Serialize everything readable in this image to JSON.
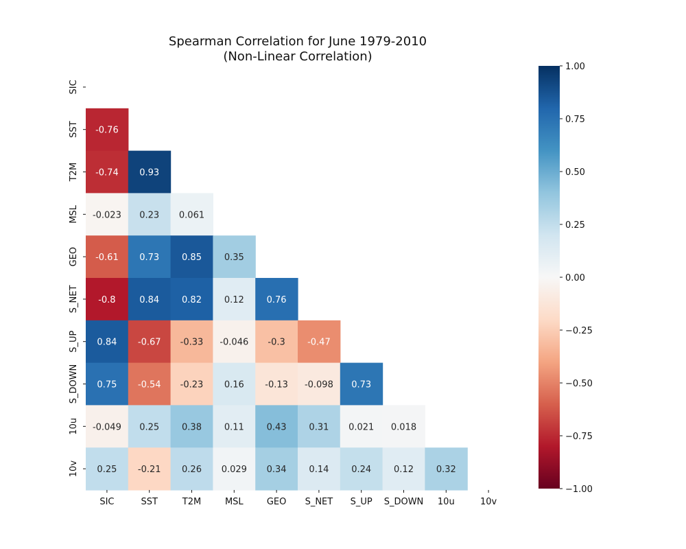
{
  "chart_data": {
    "type": "heatmap",
    "title": "Spearman Correlation for June 1979-2010",
    "subtitle": "(Non-Linear Correlation)",
    "variables": [
      "SIC",
      "SST",
      "T2M",
      "MSL",
      "GEO",
      "S_NET",
      "S_UP",
      "S_DOWN",
      "10u",
      "10v"
    ],
    "mask": "upper-triangle-including-diagonal",
    "matrix": [
      [
        null,
        null,
        null,
        null,
        null,
        null,
        null,
        null,
        null,
        null
      ],
      [
        -0.76,
        null,
        null,
        null,
        null,
        null,
        null,
        null,
        null,
        null
      ],
      [
        -0.74,
        0.93,
        null,
        null,
        null,
        null,
        null,
        null,
        null,
        null
      ],
      [
        -0.023,
        0.23,
        0.061,
        null,
        null,
        null,
        null,
        null,
        null,
        null
      ],
      [
        -0.61,
        0.73,
        0.85,
        0.35,
        null,
        null,
        null,
        null,
        null,
        null
      ],
      [
        -0.8,
        0.84,
        0.82,
        0.12,
        0.76,
        null,
        null,
        null,
        null,
        null
      ],
      [
        0.84,
        -0.67,
        -0.33,
        -0.046,
        -0.3,
        -0.47,
        null,
        null,
        null,
        null
      ],
      [
        0.75,
        -0.54,
        -0.23,
        0.16,
        -0.13,
        -0.098,
        0.73,
        null,
        null,
        null
      ],
      [
        -0.049,
        0.25,
        0.38,
        0.11,
        0.43,
        0.31,
        0.021,
        0.018,
        null,
        null
      ],
      [
        0.25,
        -0.21,
        0.26,
        0.029,
        0.34,
        0.14,
        0.24,
        0.12,
        0.32,
        null
      ]
    ],
    "labels": [
      [
        null,
        null,
        null,
        null,
        null,
        null,
        null,
        null,
        null,
        null
      ],
      [
        "-0.76",
        null,
        null,
        null,
        null,
        null,
        null,
        null,
        null,
        null
      ],
      [
        "-0.74",
        "0.93",
        null,
        null,
        null,
        null,
        null,
        null,
        null,
        null
      ],
      [
        "-0.023",
        "0.23",
        "0.061",
        null,
        null,
        null,
        null,
        null,
        null,
        null
      ],
      [
        "-0.61",
        "0.73",
        "0.85",
        "0.35",
        null,
        null,
        null,
        null,
        null,
        null
      ],
      [
        "-0.8",
        "0.84",
        "0.82",
        "0.12",
        "0.76",
        null,
        null,
        null,
        null,
        null
      ],
      [
        "0.84",
        "-0.67",
        "-0.33",
        "-0.046",
        "-0.3",
        "-0.47",
        null,
        null,
        null,
        null
      ],
      [
        "0.75",
        "-0.54",
        "-0.23",
        "0.16",
        "-0.13",
        "-0.098",
        "0.73",
        null,
        null,
        null
      ],
      [
        "-0.049",
        "0.25",
        "0.38",
        "0.11",
        "0.43",
        "0.31",
        "0.021",
        "0.018",
        null,
        null
      ],
      [
        "0.25",
        "-0.21",
        "0.26",
        "0.029",
        "0.34",
        "0.14",
        "0.24",
        "0.12",
        "0.32",
        null
      ]
    ],
    "colormap": "RdBu",
    "vmin": -1,
    "vmax": 1,
    "colorbar": {
      "ticks": [
        1.0,
        0.75,
        0.5,
        0.25,
        0.0,
        -0.25,
        -0.5,
        -0.75,
        -1.0
      ],
      "tick_labels": [
        "1.00",
        "0.75",
        "0.50",
        "0.25",
        "0.00",
        "−0.25",
        "−0.50",
        "−0.75",
        "−1.00"
      ]
    },
    "grid": false,
    "legend": "colorbar-right"
  }
}
